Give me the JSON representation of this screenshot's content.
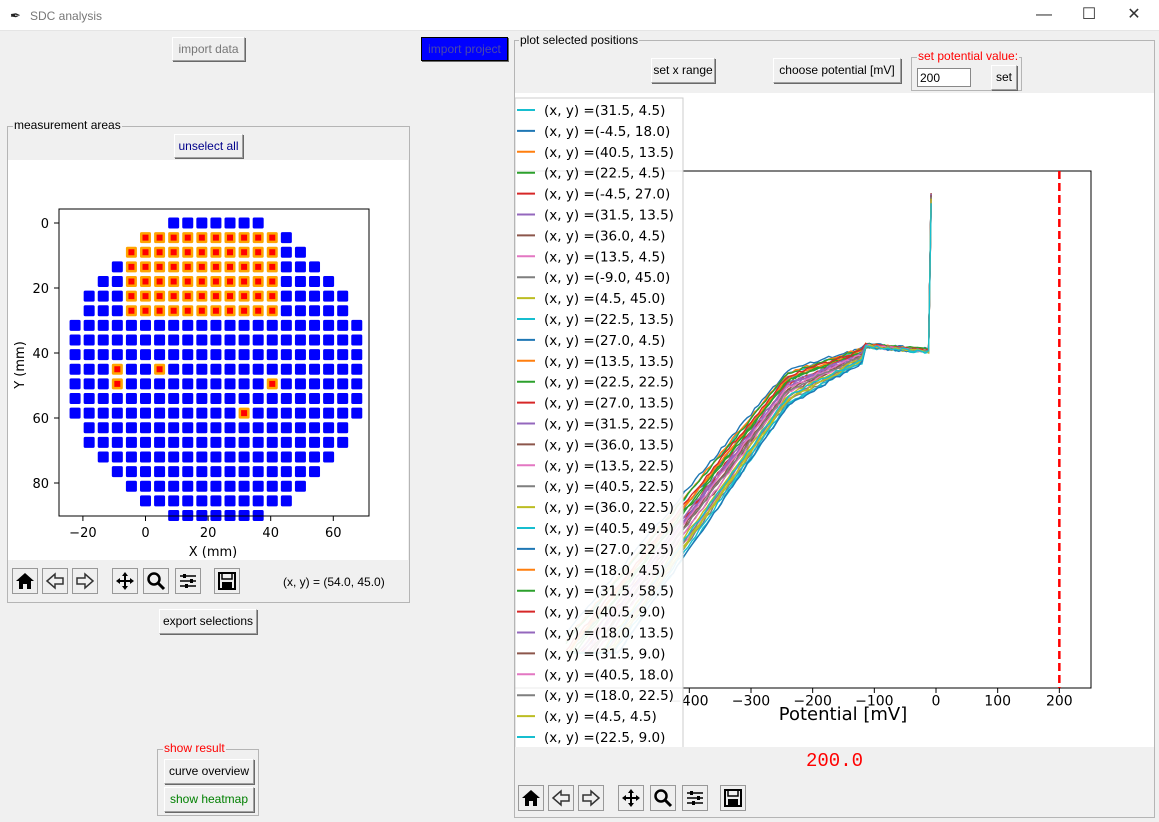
{
  "window": {
    "title": "SDC analysis",
    "minimize_icon": "—",
    "maximize_icon": "☐",
    "close_icon": "✕"
  },
  "left": {
    "import_data_label": "import data",
    "import_project_label": "import project",
    "areas_frame_label": "measurement areas",
    "unselect_all_label": "unselect all",
    "coord_readout": "(x, y) = (54.0, 45.0)",
    "export_label": "export selections",
    "show_result_label": "show result",
    "curve_overview_label": "curve overview",
    "show_heatmap_label": "show heatmap",
    "wafer_chart": {
      "xlabel": "X (mm)",
      "ylabel": "Y (mm)",
      "x_ticks": [
        "−20",
        "0",
        "20",
        "40",
        "60"
      ],
      "y_ticks": [
        "0",
        "20",
        "40",
        "60",
        "80"
      ]
    }
  },
  "right": {
    "plot_frame_label": "plot selected positions",
    "set_x_range_label": "set x range",
    "choose_potential_label": "choose potential [mV]",
    "set_potential_frame_label": "set potential value:",
    "potential_input_value": "200",
    "set_button_label": "set",
    "selected_value": "200.0"
  },
  "chart_data": {
    "type": "line",
    "xlabel": "Potential [mV]",
    "x_ticks": [
      "−400",
      "−300",
      "−200",
      "−100",
      "0",
      "100",
      "200"
    ],
    "xlim": [
      -600,
      235
    ],
    "vline": 200,
    "series": [
      {
        "name": "(x, y) =(31.5, 4.5)"
      },
      {
        "name": "(x, y) =(-4.5, 18.0)"
      },
      {
        "name": "(x, y) =(40.5, 13.5)"
      },
      {
        "name": "(x, y) =(22.5, 4.5)"
      },
      {
        "name": "(x, y) =(-4.5, 27.0)"
      },
      {
        "name": "(x, y) =(31.5, 13.5)"
      },
      {
        "name": "(x, y) =(36.0, 4.5)"
      },
      {
        "name": "(x, y) =(13.5, 4.5)"
      },
      {
        "name": "(x, y) =(-9.0, 45.0)"
      },
      {
        "name": "(x, y) =(4.5, 45.0)"
      },
      {
        "name": "(x, y) =(22.5, 13.5)"
      },
      {
        "name": "(x, y) =(27.0, 4.5)"
      },
      {
        "name": "(x, y) =(13.5, 13.5)"
      },
      {
        "name": "(x, y) =(22.5, 22.5)"
      },
      {
        "name": "(x, y) =(27.0, 13.5)"
      },
      {
        "name": "(x, y) =(31.5, 22.5)"
      },
      {
        "name": "(x, y) =(36.0, 13.5)"
      },
      {
        "name": "(x, y) =(13.5, 22.5)"
      },
      {
        "name": "(x, y) =(40.5, 22.5)"
      },
      {
        "name": "(x, y) =(36.0, 22.5)"
      },
      {
        "name": "(x, y) =(40.5, 49.5)"
      },
      {
        "name": "(x, y) =(27.0, 22.5)"
      },
      {
        "name": "(x, y) =(18.0, 4.5)"
      },
      {
        "name": "(x, y) =(31.5, 58.5)"
      },
      {
        "name": "(x, y) =(40.5, 9.0)"
      },
      {
        "name": "(x, y) =(18.0, 13.5)"
      },
      {
        "name": "(x, y) =(31.5, 9.0)"
      },
      {
        "name": "(x, y) =(40.5, 18.0)"
      },
      {
        "name": "(x, y) =(18.0, 22.5)"
      },
      {
        "name": "(x, y) =(4.5, 4.5)"
      },
      {
        "name": "(x, y) =(22.5, 9.0)"
      }
    ]
  },
  "colors": {
    "selected_button_bg": "#0000ff",
    "wafer_point": "#0000ff",
    "selected_outline": "#ffa500",
    "selected_fill": "#ff0000",
    "vline": "#ff0000",
    "result_label": "#ff0000",
    "heatmap_text": "#008000"
  },
  "icons": [
    "home-icon",
    "back-arrow-icon",
    "forward-arrow-icon",
    "pan-icon",
    "zoom-icon",
    "configure-icon",
    "save-icon"
  ]
}
